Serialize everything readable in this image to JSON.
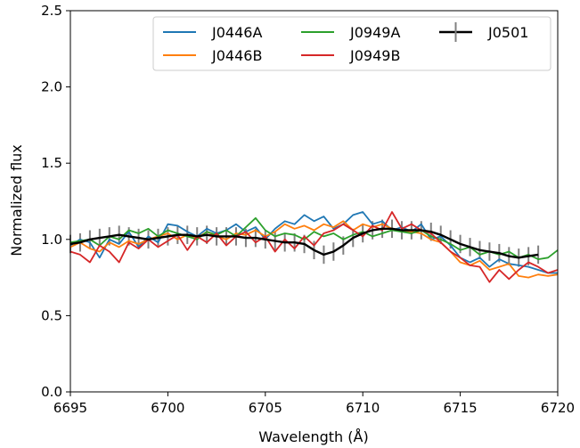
{
  "chart_data": {
    "type": "line",
    "xlabel": "Wavelength (Å)",
    "ylabel": "Normalized flux",
    "xlim": [
      6695,
      6720
    ],
    "ylim": [
      0.0,
      2.5
    ],
    "xticks": [
      "6695",
      "6700",
      "6705",
      "6710",
      "6715",
      "6720"
    ],
    "yticks": [
      "0.0",
      "0.5",
      "1.0",
      "1.5",
      "2.0",
      "2.5"
    ],
    "grid": false,
    "legend": "top-right",
    "series": [
      {
        "name": "J0446A",
        "color": "#1f77b4",
        "x": [
          6695,
          6695.5,
          6696,
          6696.5,
          6697,
          6697.5,
          6698,
          6698.5,
          6699,
          6699.5,
          6700,
          6700.5,
          6701,
          6701.5,
          6702,
          6702.5,
          6703,
          6703.5,
          6704,
          6704.5,
          6705,
          6705.5,
          6706,
          6706.5,
          6707,
          6707.5,
          6708,
          6708.5,
          6709,
          6709.5,
          6710,
          6710.5,
          6711,
          6711.5,
          6712,
          6712.5,
          6713,
          6713.5,
          6714,
          6714.5,
          6715,
          6715.5,
          6716,
          6716.5,
          6717,
          6717.5,
          6718,
          6718.5,
          6719,
          6719.5,
          6720
        ],
        "y": [
          0.96,
          1.0,
          0.98,
          0.88,
          1.0,
          0.97,
          1.05,
          0.95,
          1.02,
          0.98,
          1.1,
          1.09,
          1.05,
          1.02,
          1.07,
          1.04,
          1.06,
          1.1,
          1.05,
          1.08,
          1.0,
          1.07,
          1.12,
          1.1,
          1.16,
          1.12,
          1.15,
          1.07,
          1.1,
          1.16,
          1.18,
          1.1,
          1.12,
          1.06,
          1.08,
          1.05,
          1.1,
          1.0,
          1.02,
          0.96,
          0.88,
          0.85,
          0.88,
          0.82,
          0.87,
          0.84,
          0.83,
          0.82,
          0.8,
          0.78,
          0.78
        ]
      },
      {
        "name": "J0446B",
        "color": "#ff7f0e",
        "x": [
          6695,
          6695.5,
          6696,
          6696.5,
          6697,
          6697.5,
          6698,
          6698.5,
          6699,
          6699.5,
          6700,
          6700.5,
          6701,
          6701.5,
          6702,
          6702.5,
          6703,
          6703.5,
          6704,
          6704.5,
          6705,
          6705.5,
          6706,
          6706.5,
          6707,
          6707.5,
          6708,
          6708.5,
          6709,
          6709.5,
          6710,
          6710.5,
          6711,
          6711.5,
          6712,
          6712.5,
          6713,
          6713.5,
          6714,
          6714.5,
          6715,
          6715.5,
          6716,
          6716.5,
          6717,
          6717.5,
          6718,
          6718.5,
          6719,
          6719.5,
          6720
        ],
        "y": [
          0.95,
          0.98,
          0.94,
          0.92,
          0.98,
          0.95,
          0.99,
          0.97,
          1.0,
          1.02,
          1.04,
          1.0,
          1.03,
          1.01,
          1.05,
          1.02,
          1.0,
          1.04,
          1.03,
          1.06,
          1.02,
          1.05,
          1.1,
          1.07,
          1.09,
          1.06,
          1.1,
          1.08,
          1.12,
          1.06,
          1.1,
          1.08,
          1.1,
          1.07,
          1.06,
          1.05,
          1.04,
          1.0,
          0.98,
          0.92,
          0.85,
          0.83,
          0.86,
          0.8,
          0.82,
          0.84,
          0.76,
          0.75,
          0.77,
          0.76,
          0.77
        ]
      },
      {
        "name": "J0949A",
        "color": "#2ca02c",
        "x": [
          6695,
          6695.5,
          6696,
          6696.5,
          6697,
          6697.5,
          6698,
          6698.5,
          6699,
          6699.5,
          6700,
          6700.5,
          6701,
          6701.5,
          6702,
          6702.5,
          6703,
          6703.5,
          6704,
          6704.5,
          6705,
          6705.5,
          6706,
          6706.5,
          6707,
          6707.5,
          6708,
          6708.5,
          6709,
          6709.5,
          6710,
          6710.5,
          6711,
          6711.5,
          6712,
          6712.5,
          6713,
          6713.5,
          6714,
          6714.5,
          6715,
          6715.5,
          6716,
          6716.5,
          6717,
          6717.5,
          6718,
          6718.5,
          6719,
          6719.5,
          6720
        ],
        "y": [
          0.98,
          0.99,
          1.0,
          0.96,
          1.02,
          1.0,
          1.06,
          1.04,
          1.07,
          1.02,
          1.06,
          1.04,
          1.02,
          1.0,
          1.05,
          1.03,
          1.06,
          1.02,
          1.08,
          1.14,
          1.06,
          1.02,
          1.04,
          1.03,
          1.0,
          1.05,
          1.02,
          1.04,
          1.0,
          1.03,
          1.05,
          1.02,
          1.04,
          1.06,
          1.05,
          1.04,
          1.06,
          1.02,
          1.0,
          0.97,
          0.93,
          0.95,
          0.9,
          0.92,
          0.9,
          0.92,
          0.88,
          0.9,
          0.87,
          0.88,
          0.93
        ]
      },
      {
        "name": "J0949B",
        "color": "#d62728",
        "x": [
          6695,
          6695.5,
          6696,
          6696.5,
          6697,
          6697.5,
          6698,
          6698.5,
          6699,
          6699.5,
          6700,
          6700.5,
          6701,
          6701.5,
          6702,
          6702.5,
          6703,
          6703.5,
          6704,
          6704.5,
          6705,
          6705.5,
          6706,
          6706.5,
          6707,
          6707.5,
          6708,
          6708.5,
          6709,
          6709.5,
          6710,
          6710.5,
          6711,
          6711.5,
          6712,
          6712.5,
          6713,
          6713.5,
          6714,
          6714.5,
          6715,
          6715.5,
          6716,
          6716.5,
          6717,
          6717.5,
          6718,
          6718.5,
          6719,
          6719.5,
          6720
        ],
        "y": [
          0.92,
          0.9,
          0.85,
          0.96,
          0.92,
          0.85,
          0.98,
          0.94,
          1.0,
          0.95,
          0.99,
          1.03,
          0.93,
          1.02,
          0.98,
          1.04,
          0.96,
          1.02,
          1.05,
          0.98,
          1.02,
          0.92,
          1.0,
          0.94,
          1.02,
          0.96,
          1.04,
          1.06,
          1.1,
          1.06,
          1.02,
          1.09,
          1.06,
          1.18,
          1.07,
          1.1,
          1.06,
          1.04,
          0.98,
          0.92,
          0.88,
          0.83,
          0.82,
          0.72,
          0.8,
          0.74,
          0.8,
          0.85,
          0.82,
          0.78,
          0.8
        ]
      },
      {
        "name": "J0501",
        "color": "#000000",
        "error_color": "#808080",
        "x": [
          6695,
          6695.5,
          6696,
          6696.5,
          6697,
          6697.5,
          6698,
          6698.5,
          6699,
          6699.5,
          6700,
          6700.5,
          6701,
          6701.5,
          6702,
          6702.5,
          6703,
          6703.5,
          6704,
          6704.5,
          6705,
          6705.5,
          6706,
          6706.5,
          6707,
          6707.5,
          6708,
          6708.5,
          6709,
          6709.5,
          6710,
          6710.5,
          6711,
          6711.5,
          6712,
          6712.5,
          6713,
          6713.5,
          6714,
          6714.5,
          6715,
          6715.5,
          6716,
          6716.5,
          6717,
          6717.5,
          6718,
          6718.5,
          6719
        ],
        "y": [
          0.97,
          0.98,
          1.0,
          1.01,
          1.02,
          1.03,
          1.02,
          1.01,
          1.0,
          1.01,
          1.02,
          1.03,
          1.03,
          1.02,
          1.03,
          1.02,
          1.02,
          1.02,
          1.01,
          1.01,
          1.0,
          0.99,
          0.98,
          0.98,
          0.97,
          0.93,
          0.9,
          0.92,
          0.96,
          1.01,
          1.04,
          1.06,
          1.07,
          1.07,
          1.06,
          1.06,
          1.06,
          1.05,
          1.03,
          1.0,
          0.97,
          0.95,
          0.93,
          0.92,
          0.91,
          0.89,
          0.88,
          0.89,
          0.9
        ],
        "yerr": 0.06
      }
    ]
  }
}
